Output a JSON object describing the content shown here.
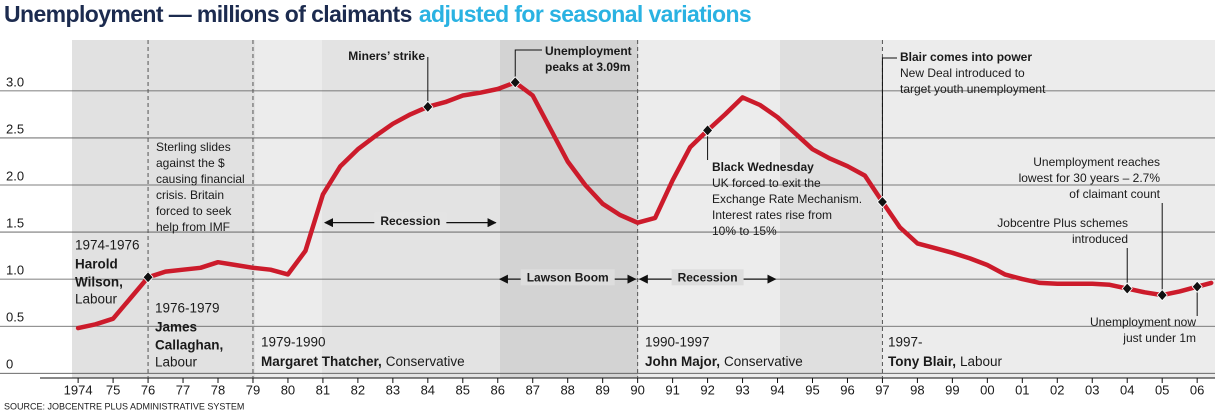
{
  "chart_data": {
    "type": "line",
    "title": "Unemployment — millions of claimants",
    "subtitle": "adjusted for seasonal variations",
    "source": "SOURCE: JOBCENTRE PLUS ADMINISTRATIVE SYSTEM",
    "color": "#cc1b2b",
    "grid": true,
    "xlim": [
      1972.91,
      2006.51
    ],
    "ylim": [
      -0.05,
      3.54
    ],
    "yticks": [
      0,
      0.5,
      {
        "value": 1,
        "label": "1.0"
      },
      1.5,
      {
        "value": 2,
        "label": "2.0"
      },
      2.5,
      {
        "value": 3,
        "label": "3.0"
      }
    ],
    "xticks": [
      1974,
      {
        "value": 1975,
        "label": "75"
      },
      {
        "value": 1976,
        "label": "76"
      },
      {
        "value": 1977,
        "label": "77"
      },
      {
        "value": 1978,
        "label": "78"
      },
      {
        "value": 1979,
        "label": "79"
      },
      {
        "value": 1980,
        "label": "80"
      },
      {
        "value": 1981,
        "label": "81"
      },
      {
        "value": 1982,
        "label": "82"
      },
      {
        "value": 1983,
        "label": "83"
      },
      {
        "value": 1984,
        "label": "84"
      },
      {
        "value": 1985,
        "label": "85"
      },
      {
        "value": 1986,
        "label": "86"
      },
      {
        "value": 1987,
        "label": "87"
      },
      {
        "value": 1988,
        "label": "88"
      },
      {
        "value": 1989,
        "label": "89"
      },
      {
        "value": 1990,
        "label": "90"
      },
      {
        "value": 1991,
        "label": "91"
      },
      {
        "value": 1992,
        "label": "92"
      },
      {
        "value": 1993,
        "label": "93"
      },
      {
        "value": 1994,
        "label": "94"
      },
      {
        "value": 1995,
        "label": "95"
      },
      {
        "value": 1996,
        "label": "96"
      },
      {
        "value": 1997,
        "label": "97"
      },
      {
        "value": 1998,
        "label": "98"
      },
      {
        "value": 1999,
        "label": "99"
      },
      {
        "value": 2000,
        "label": "00"
      },
      {
        "value": 2001,
        "label": "01"
      },
      {
        "value": 2002,
        "label": "02"
      },
      {
        "value": 2003,
        "label": "03"
      },
      {
        "value": 2004,
        "label": "04"
      },
      {
        "value": 2005,
        "label": "05"
      },
      {
        "value": 2006,
        "label": "06"
      }
    ],
    "x": [
      1974.0,
      1974.5,
      1975.0,
      1975.5,
      1976.0,
      1976.5,
      1977.0,
      1977.5,
      1978.0,
      1978.5,
      1979.0,
      1979.5,
      1980.0,
      1980.5,
      1981.0,
      1981.5,
      1982.0,
      1982.5,
      1983.0,
      1983.5,
      1984.0,
      1984.5,
      1985.0,
      1985.5,
      1986.0,
      1986.5,
      1987.0,
      1987.5,
      1988.0,
      1988.5,
      1989.0,
      1989.5,
      1990.0,
      1990.5,
      1991.0,
      1991.5,
      1992.0,
      1992.5,
      1993.0,
      1993.5,
      1994.0,
      1994.5,
      1995.0,
      1995.5,
      1996.0,
      1996.5,
      1997.0,
      1997.5,
      1998.0,
      1998.5,
      1999.0,
      1999.5,
      2000.0,
      2000.5,
      2001.0,
      2001.5,
      2002.0,
      2002.5,
      2003.0,
      2003.5,
      2004.0,
      2004.5,
      2005.0,
      2005.5,
      2006.0,
      2006.4
    ],
    "values": [
      0.48,
      0.52,
      0.58,
      0.8,
      1.02,
      1.08,
      1.1,
      1.12,
      1.18,
      1.15,
      1.12,
      1.1,
      1.05,
      1.3,
      1.9,
      2.2,
      2.38,
      2.52,
      2.65,
      2.75,
      2.83,
      2.88,
      2.95,
      2.98,
      3.02,
      3.09,
      2.95,
      2.6,
      2.25,
      2.0,
      1.8,
      1.68,
      1.6,
      1.65,
      2.05,
      2.4,
      2.58,
      2.75,
      2.93,
      2.85,
      2.72,
      2.55,
      2.38,
      2.28,
      2.2,
      2.1,
      1.82,
      1.55,
      1.38,
      1.33,
      1.28,
      1.22,
      1.15,
      1.05,
      1.0,
      0.96,
      0.95,
      0.95,
      0.95,
      0.94,
      0.9,
      0.86,
      0.83,
      0.87,
      0.92,
      0.96
    ],
    "annotations": [
      {
        "x": 1984,
        "y": 2.83,
        "title": [
          "Miners’ strike"
        ],
        "lines": []
      },
      {
        "x": 1986.5,
        "y": 3.09,
        "title": [
          "Unemployment",
          "peaks at 3.09m"
        ],
        "lines": []
      },
      {
        "x": 1976,
        "y": 1.02,
        "title": [],
        "lines": [
          "Sterling slides",
          "against the $",
          "causing financial",
          "crisis. Britain",
          "forced to seek",
          "help from IMF"
        ]
      },
      {
        "x": 1992,
        "y": 2.58,
        "title": [
          "Black Wednesday"
        ],
        "lines": [
          "UK forced to exit the",
          "Exchange Rate Mechanism.",
          "Interest rates rise from",
          "10% to 15%"
        ]
      },
      {
        "x": 1997,
        "y": 1.82,
        "title": [
          "Blair comes into power"
        ],
        "lines": [
          "New Deal introduced to",
          "target youth unemployment"
        ]
      },
      {
        "x": 2005,
        "y": 0.83,
        "title": [],
        "lines": [
          "Unemployment reaches",
          "lowest for 30 years – 2.7%",
          "of claimant count"
        ]
      },
      {
        "x": 2004,
        "y": 0.9,
        "title": [],
        "lines": [
          "Jobcentre Plus schemes",
          "introduced"
        ]
      },
      {
        "x": 2006,
        "y": 0.92,
        "title": [],
        "lines": [
          "Unemployment now",
          "just under 1m"
        ]
      }
    ],
    "ranges": [
      {
        "label": "Recession",
        "start": 1981,
        "end": 1986,
        "y": 1.6
      },
      {
        "label": "Lawson Boom",
        "start": 1986,
        "end": 1990,
        "y": 1.0
      },
      {
        "label": "Recession",
        "start": 1990,
        "end": 1994,
        "y": 1.0
      }
    ],
    "governments": [
      {
        "start": 1974,
        "period": "1974-1976",
        "name_lines": [
          "Harold",
          "Wilson,"
        ],
        "party": "Labour"
      },
      {
        "start": 1976,
        "period": "1976-1979",
        "name_lines": [
          "James",
          "Callaghan,"
        ],
        "party": "Labour"
      },
      {
        "start": 1979,
        "period": "1979-1990",
        "name_lines": [
          "Margaret Thatcher,"
        ],
        "party": "Conservative"
      },
      {
        "start": 1990,
        "period": "1990-1997",
        "name_lines": [
          "John Major,"
        ],
        "party": "Conservative"
      },
      {
        "start": 1997,
        "period": "1997-",
        "name_lines": [
          "Tony Blair,"
        ],
        "party": "Labour"
      }
    ]
  }
}
